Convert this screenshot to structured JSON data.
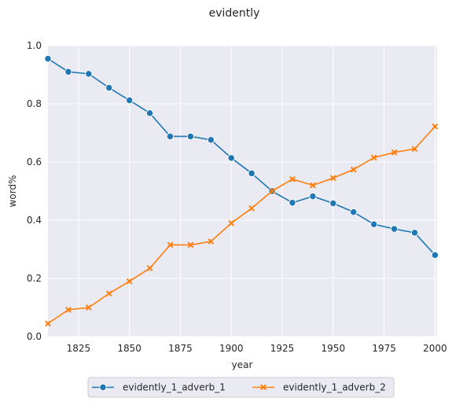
{
  "chart_data": {
    "type": "line",
    "title": "evidently",
    "xlabel": "year",
    "ylabel": "word%",
    "xlim": [
      1810,
      2001
    ],
    "ylim": [
      0.0,
      1.0
    ],
    "xticks": [
      1825,
      1850,
      1875,
      1900,
      1925,
      1950,
      1975,
      2000
    ],
    "yticks": [
      0.0,
      0.2,
      0.4,
      0.6,
      0.8,
      1.0
    ],
    "grid": true,
    "legend_position": "below-center",
    "x": [
      1810,
      1820,
      1830,
      1840,
      1850,
      1860,
      1870,
      1880,
      1890,
      1900,
      1910,
      1920,
      1930,
      1940,
      1950,
      1960,
      1970,
      1980,
      1990,
      2000
    ],
    "series": [
      {
        "name": "evidently_1_adverb_1",
        "color": "#1f77b4",
        "marker": "circle",
        "values": [
          0.955,
          0.91,
          0.903,
          0.855,
          0.812,
          0.768,
          0.688,
          0.688,
          0.676,
          0.614,
          0.561,
          0.5,
          0.46,
          0.482,
          0.458,
          0.428,
          0.386,
          0.37,
          0.357,
          0.28
        ]
      },
      {
        "name": "evidently_1_adverb_2",
        "color": "#ff7f0e",
        "marker": "x",
        "values": [
          0.045,
          0.092,
          0.1,
          0.148,
          0.19,
          0.235,
          0.315,
          0.315,
          0.327,
          0.39,
          0.441,
          0.5,
          0.541,
          0.52,
          0.545,
          0.574,
          0.615,
          0.633,
          0.645,
          0.722
        ]
      }
    ]
  }
}
